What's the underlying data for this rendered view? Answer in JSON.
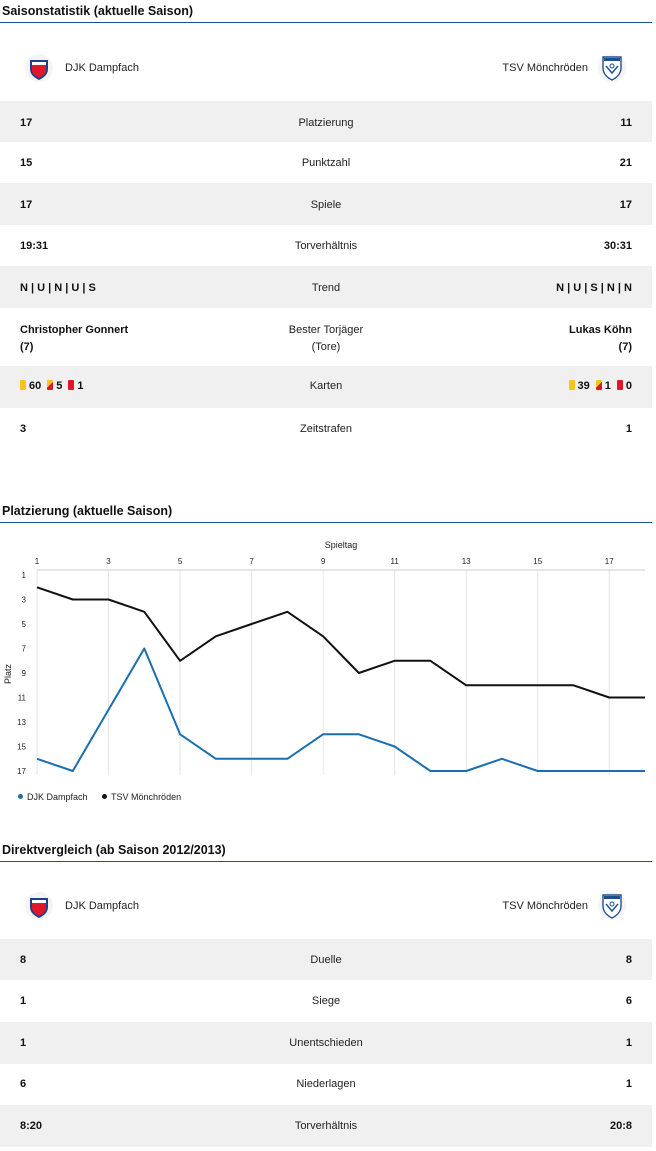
{
  "season_stats": {
    "title": "Saisonstatistik (aktuelle Saison)",
    "home_team": "DJK Dampfach",
    "away_team": "TSV Mönchröden",
    "rows": [
      {
        "left": "17",
        "label": "Platzierung",
        "right": "11"
      },
      {
        "left": "15",
        "label": "Punktzahl",
        "right": "21"
      },
      {
        "left": "17",
        "label": "Spiele",
        "right": "17"
      },
      {
        "left": "19:31",
        "label": "Torverhältnis",
        "right": "30:31"
      },
      {
        "left": "N | U | N | U | S",
        "label": "Trend",
        "right": "N | U | S | N | N"
      }
    ],
    "top_scorer": {
      "label_line1": "Bester Torjäger",
      "label_line2": "(Tore)",
      "left_name": "Christopher Gonnert",
      "left_goals": "(7)",
      "right_name": "Lukas Köhn",
      "right_goals": "(7)"
    },
    "cards": {
      "label": "Karten",
      "left": {
        "yellow": "60",
        "yellow_red": "5",
        "red": "1"
      },
      "right": {
        "yellow": "39",
        "yellow_red": "1",
        "red": "0"
      }
    },
    "penalties": {
      "left": "3",
      "label": "Zeitstrafen",
      "right": "1"
    }
  },
  "standings_chart": {
    "section_title": "Platzierung (aktuelle Saison)",
    "chart_data": {
      "type": "line",
      "xlabel": "Spieltag",
      "ylabel": "Platz",
      "x": [
        1,
        2,
        3,
        4,
        5,
        6,
        7,
        8,
        9,
        10,
        11,
        12,
        13,
        14,
        15,
        16,
        17,
        18
      ],
      "x_tick_labels": [
        "1",
        "3",
        "5",
        "7",
        "9",
        "11",
        "13",
        "15",
        "17"
      ],
      "y_tick_labels": [
        "1",
        "3",
        "5",
        "7",
        "9",
        "11",
        "13",
        "15",
        "17"
      ],
      "ylim": [
        1,
        17
      ],
      "y_inverted": true,
      "x_axis_position": "top",
      "legend_position": "bottom-left",
      "series": [
        {
          "name": "DJK Dampfach",
          "color": "#1a6faf",
          "values": [
            16,
            17,
            12,
            7,
            14,
            16,
            16,
            16,
            14,
            14,
            15,
            17,
            17,
            16,
            17,
            17,
            17,
            17
          ]
        },
        {
          "name": "TSV Mönchröden",
          "color": "#111111",
          "values": [
            2,
            3,
            3,
            4,
            8,
            6,
            5,
            4,
            6,
            9,
            8,
            8,
            10,
            10,
            10,
            10,
            11,
            11
          ]
        }
      ]
    }
  },
  "head_to_head": {
    "title": "Direktvergleich (ab Saison 2012/2013)",
    "home_team": "DJK Dampfach",
    "away_team": "TSV Mönchröden",
    "rows": [
      {
        "left": "8",
        "label": "Duelle",
        "right": "8"
      },
      {
        "left": "1",
        "label": "Siege",
        "right": "6"
      },
      {
        "left": "1",
        "label": "Unentschieden",
        "right": "1"
      },
      {
        "left": "6",
        "label": "Niederlagen",
        "right": "1"
      },
      {
        "left": "8:20",
        "label": "Torverhältnis",
        "right": "20:8"
      }
    ]
  },
  "colors": {
    "accent_rule": "#1d4e8f",
    "row_shade": "#f0f0f0",
    "dampfach_blue": "#1a6faf",
    "moenchroeden_black": "#111111"
  },
  "icons": {
    "home_crest": "djk-dampfach-crest-icon",
    "away_crest": "tsv-moenchroeden-crest-icon"
  }
}
